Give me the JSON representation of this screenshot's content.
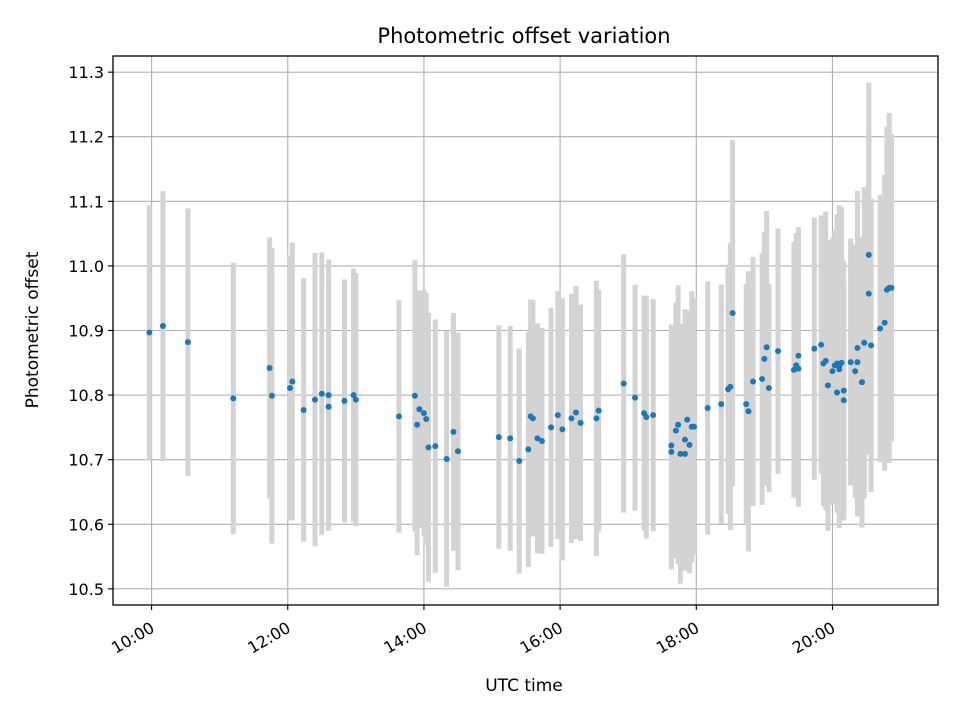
{
  "chart_data": {
    "type": "scatter",
    "title": "Photometric offset variation",
    "xlabel": "UTC time",
    "ylabel": "Photometric offset",
    "xlim": [
      "09:26",
      "21:33"
    ],
    "ylim": [
      10.475,
      11.325
    ],
    "xticks": [
      "10:00",
      "12:00",
      "14:00",
      "16:00",
      "18:00",
      "20:00"
    ],
    "yticks": [
      "10.5",
      "10.6",
      "10.7",
      "10.8",
      "10.9",
      "11.0",
      "11.1",
      "11.2",
      "11.3"
    ],
    "grid": true,
    "colors": {
      "points": "#1f77b4",
      "error_bars": "#d3d3d3",
      "grid": "#b0b0b0"
    },
    "series": [
      {
        "x": [
          "09:58",
          "10:10",
          "10:32",
          "11:12",
          "11:44",
          "11:46",
          "12:02",
          "12:04",
          "12:14",
          "12:24",
          "12:30",
          "12:36",
          "12:36",
          "12:50",
          "12:58",
          "13:00",
          "13:38",
          "13:52",
          "13:54",
          "13:56",
          "14:00",
          "14:02",
          "14:04",
          "14:10",
          "14:20",
          "14:26",
          "14:30",
          "15:06",
          "15:16",
          "15:24",
          "15:32",
          "15:34",
          "15:36",
          "15:40",
          "15:44",
          "15:52",
          "15:58",
          "16:02",
          "16:10",
          "16:14",
          "16:18",
          "16:32",
          "16:34",
          "16:56",
          "17:06",
          "17:14",
          "17:16",
          "17:22",
          "17:38",
          "17:38",
          "17:42",
          "17:44",
          "17:46",
          "17:50",
          "17:50",
          "17:52",
          "17:54",
          "17:56",
          "17:58",
          "18:10",
          "18:22",
          "18:28",
          "18:30",
          "18:32",
          "18:44",
          "18:46",
          "18:50",
          "18:58",
          "19:00",
          "19:02",
          "19:04",
          "19:12",
          "19:26",
          "19:28",
          "19:30",
          "19:30",
          "19:44",
          "19:50",
          "19:52",
          "19:54",
          "19:56",
          "20:00",
          "20:02",
          "20:04",
          "20:04",
          "20:06",
          "20:06",
          "20:08",
          "20:10",
          "20:10",
          "20:16",
          "20:20",
          "20:22",
          "20:22",
          "20:26",
          "20:28",
          "20:32",
          "20:32",
          "20:34",
          "20:42",
          "20:46",
          "20:48",
          "20:50",
          "20:52"
        ],
        "y": [
          10.897,
          10.907,
          10.882,
          10.795,
          10.842,
          10.799,
          10.811,
          10.821,
          10.777,
          10.793,
          10.802,
          10.8,
          10.782,
          10.791,
          10.8,
          10.793,
          10.767,
          10.799,
          10.754,
          10.778,
          10.772,
          10.763,
          10.719,
          10.721,
          10.701,
          10.743,
          10.713,
          10.735,
          10.733,
          10.698,
          10.716,
          10.767,
          10.764,
          10.733,
          10.729,
          10.75,
          10.769,
          10.747,
          10.764,
          10.773,
          10.757,
          10.764,
          10.776,
          10.818,
          10.796,
          10.772,
          10.766,
          10.769,
          10.712,
          10.722,
          10.745,
          10.754,
          10.709,
          10.709,
          10.731,
          10.762,
          10.723,
          10.751,
          10.751,
          10.78,
          10.786,
          10.809,
          10.813,
          10.927,
          10.786,
          10.775,
          10.821,
          10.825,
          10.856,
          10.874,
          10.811,
          10.868,
          10.839,
          10.846,
          10.861,
          10.841,
          10.872,
          10.878,
          10.849,
          10.853,
          10.815,
          10.837,
          10.846,
          10.804,
          10.849,
          10.844,
          10.84,
          10.85,
          10.807,
          10.792,
          10.851,
          10.837,
          10.873,
          10.851,
          10.82,
          10.881,
          11.017,
          10.957,
          10.877,
          10.903,
          10.912,
          10.963,
          10.966,
          10.966
        ],
        "err": [
          0.197,
          0.209,
          0.207,
          0.21,
          0.202,
          0.229,
          0.205,
          0.215,
          0.204,
          0.227,
          0.219,
          0.21,
          0.191,
          0.188,
          0.196,
          0.196,
          0.18,
          0.21,
          0.202,
          0.184,
          0.191,
          0.195,
          0.208,
          0.196,
          0.198,
          0.184,
          0.184,
          0.173,
          0.174,
          0.174,
          0.182,
          0.181,
          0.183,
          0.178,
          0.175,
          0.185,
          0.192,
          0.203,
          0.193,
          0.196,
          0.183,
          0.213,
          0.187,
          0.2,
          0.175,
          0.182,
          0.188,
          0.18,
          0.182,
          0.187,
          0.198,
          0.216,
          0.201,
          0.181,
          0.202,
          0.169,
          0.199,
          0.21,
          0.199,
          0.196,
          0.185,
          0.193,
          0.222,
          0.268,
          0.186,
          0.217,
          0.193,
          0.195,
          0.196,
          0.211,
          0.161,
          0.19,
          0.198,
          0.205,
          0.199,
          0.214,
          0.203,
          0.2,
          0.221,
          0.231,
          0.225,
          0.207,
          0.21,
          0.183,
          0.231,
          0.25,
          0.24,
          0.241,
          0.201,
          0.178,
          0.191,
          0.196,
          0.243,
          0.239,
          0.225,
          0.241,
          0.267,
          0.249,
          0.227,
          0.207,
          0.229,
          0.253,
          0.271,
          0.238
        ]
      }
    ]
  }
}
